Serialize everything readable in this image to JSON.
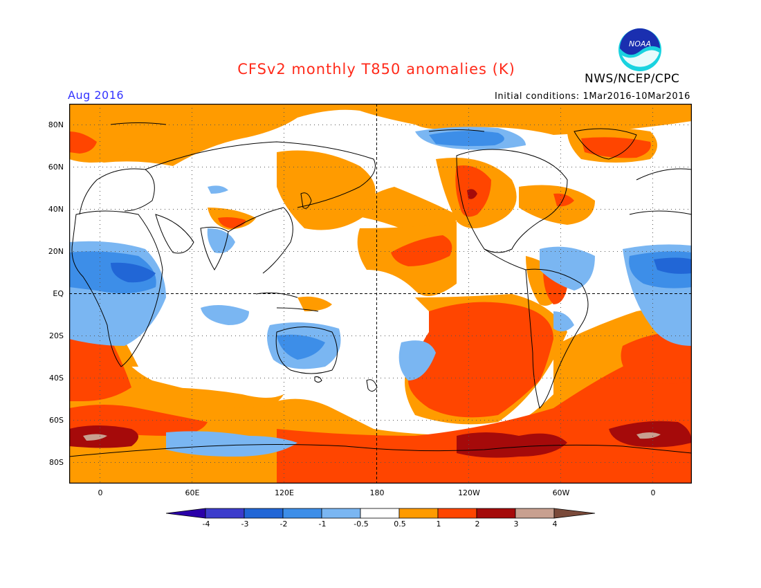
{
  "header": {
    "title": "CFSv2 monthly T850 anomalies (K)",
    "agency": "NWS/NCEP/CPC",
    "logo_text": "NOAA",
    "valid_month": "Aug 2016",
    "initial_conditions": "Initial conditions: 1Mar2016-10Mar2016"
  },
  "map": {
    "lat_labels": [
      "80N",
      "60N",
      "40N",
      "20N",
      "EQ",
      "20S",
      "40S",
      "60S",
      "80S"
    ],
    "lon_labels": [
      "0",
      "60E",
      "120E",
      "180",
      "120W",
      "60W",
      "0"
    ],
    "colors": {
      "below_-4": "#2a00a8",
      "-4_-3": "#3c3ccc",
      "-3_-2": "#2166d6",
      "-2_-1": "#3d8ee8",
      "-1_-0.5": "#7ab6f2",
      "-0.5_0.5": "#ffffff",
      "0.5_1": "#ff9b00",
      "1_2": "#ff4500",
      "2_3": "#a50a0a",
      "3_4": "#c8a090",
      "above_4": "#7a4a3a"
    }
  },
  "colorbar": {
    "labels": [
      "-4",
      "-3",
      "-2",
      "-1",
      "-0.5",
      "0.5",
      "1",
      "2",
      "3",
      "4"
    ],
    "colors": [
      "#3c3ccc",
      "#2166d6",
      "#3d8ee8",
      "#7ab6f2",
      "#ffffff",
      "#ff9b00",
      "#ff4500",
      "#a50a0a",
      "#c8a090"
    ],
    "end_low": "#2a00a8",
    "end_high": "#7a4a3a"
  }
}
